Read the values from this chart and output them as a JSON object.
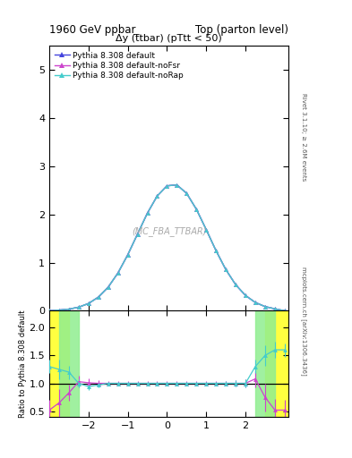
{
  "title_left": "1960 GeV ppbar",
  "title_right": "Top (parton level)",
  "plot_title": "Δy (t̅tbar) (pTtt < 50)",
  "watermark": "(MC_FBA_TTBAR)",
  "right_label_top": "Rivet 3.1.10; ≥ 2.6M events",
  "right_label_bottom": "mcplots.cern.ch [arXiv:1306.3436]",
  "legend": [
    {
      "label": "Pythia 8.308 default",
      "color": "#4444dd"
    },
    {
      "label": "Pythia 8.308 default-noFsr",
      "color": "#cc44cc"
    },
    {
      "label": "Pythia 8.308 default-noRap",
      "color": "#44cccc"
    }
  ],
  "main_ylim": [
    0,
    5.5
  ],
  "main_yticks": [
    0,
    1,
    2,
    3,
    4,
    5
  ],
  "ratio_ylim": [
    0.4,
    2.3
  ],
  "ratio_yticks": [
    0.5,
    1.0,
    1.5,
    2.0
  ],
  "xlim": [
    -3.0,
    3.1
  ],
  "xticks": [
    -2,
    -1,
    0,
    1,
    2
  ],
  "gaussian_mu": 0.15,
  "gaussian_sigma": 0.9,
  "gaussian_scale": 2.63,
  "x_points": [
    -3.0,
    -2.75,
    -2.5,
    -2.25,
    -2.0,
    -1.75,
    -1.5,
    -1.25,
    -1.0,
    -0.75,
    -0.5,
    -0.25,
    0.0,
    0.25,
    0.5,
    0.75,
    1.0,
    1.25,
    1.5,
    1.75,
    2.0,
    2.25,
    2.5,
    2.75,
    3.0
  ],
  "ratio_noFsr": [
    0.52,
    0.65,
    0.83,
    1.03,
    1.01,
    1.0,
    1.0,
    1.0,
    1.0,
    1.0,
    1.0,
    1.0,
    1.0,
    1.0,
    1.0,
    1.0,
    1.0,
    1.0,
    1.0,
    1.0,
    1.0,
    1.08,
    0.75,
    0.52,
    0.52
  ],
  "ratio_noRap": [
    1.3,
    1.25,
    1.2,
    1.0,
    0.94,
    0.97,
    1.0,
    1.0,
    1.0,
    1.0,
    1.0,
    1.0,
    1.0,
    1.0,
    1.0,
    1.0,
    1.0,
    1.0,
    1.0,
    1.0,
    1.0,
    1.3,
    1.5,
    1.6,
    1.6
  ],
  "err_noFsr": [
    0.18,
    0.25,
    0.15,
    0.1,
    0.08,
    0.05,
    0.04,
    0.04,
    0.04,
    0.04,
    0.04,
    0.04,
    0.04,
    0.04,
    0.04,
    0.04,
    0.04,
    0.04,
    0.04,
    0.05,
    0.08,
    0.15,
    0.25,
    0.2,
    0.18
  ],
  "err_noRap": [
    0.12,
    0.18,
    0.12,
    0.08,
    0.06,
    0.04,
    0.03,
    0.03,
    0.03,
    0.03,
    0.03,
    0.03,
    0.03,
    0.03,
    0.03,
    0.03,
    0.03,
    0.03,
    0.04,
    0.05,
    0.07,
    0.12,
    0.18,
    0.15,
    0.12
  ]
}
